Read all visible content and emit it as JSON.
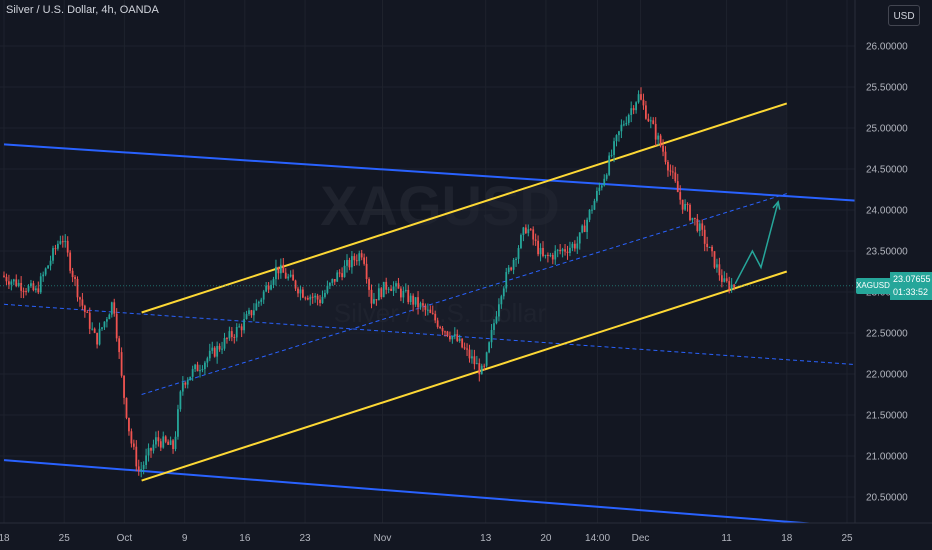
{
  "header": {
    "title": "Silver / U.S. Dollar, 4h, OANDA",
    "currency": "USD"
  },
  "watermark": {
    "symbol": "XAGUSD",
    "name": "Silver / U.S. Dollar"
  },
  "price_tag": {
    "symbol": "XAGUSD",
    "price": "23.07655",
    "countdown": "01:33:52"
  },
  "colors": {
    "background": "#131722",
    "up": "#26a69a",
    "down": "#ef5350",
    "channel_outer": "#2962ff",
    "channel_inner": "#fdd835",
    "projection": "#26a69a",
    "grid": "#1e222d"
  },
  "chart_data": {
    "type": "candlestick",
    "title": "Silver / U.S. Dollar, 4h, OANDA",
    "ylim": [
      20.3,
      26.2
    ],
    "y_ticks": [
      "26.00000",
      "25.50000",
      "25.00000",
      "24.50000",
      "24.00000",
      "23.50000",
      "23.00000",
      "22.50000",
      "22.00000",
      "21.50000",
      "21.00000",
      "20.50000"
    ],
    "x_ticks": [
      "18",
      "25",
      "Oct",
      "9",
      "16",
      "23",
      "Nov",
      "13",
      "20",
      "14:00",
      "Dec",
      "11",
      "18",
      "25"
    ],
    "grid": true,
    "last_price": 23.07655,
    "price_path": [
      [
        "Sep 18",
        23.2
      ],
      [
        "Sep 22",
        23.0
      ],
      [
        "Sep 25",
        23.7
      ],
      [
        "Sep 27",
        22.95
      ],
      [
        "Sep 29",
        22.4
      ],
      [
        "Oct 1",
        22.9
      ],
      [
        "Oct 2",
        21.9
      ],
      [
        "Oct 3",
        21.2
      ],
      [
        "Oct 4",
        20.8
      ],
      [
        "Oct 6",
        21.2
      ],
      [
        "Oct 8",
        21.1
      ],
      [
        "Oct 9",
        21.9
      ],
      [
        "Oct 12",
        22.2
      ],
      [
        "Oct 16",
        22.6
      ],
      [
        "Oct 18",
        22.9
      ],
      [
        "Oct 20",
        23.3
      ],
      [
        "Oct 23",
        23.0
      ],
      [
        "Oct 25",
        22.9
      ],
      [
        "Oct 27",
        23.2
      ],
      [
        "Oct 30",
        23.5
      ],
      [
        "Oct 31",
        22.9
      ],
      [
        "Nov 2",
        23.1
      ],
      [
        "Nov 6",
        22.8
      ],
      [
        "Nov 9",
        22.5
      ],
      [
        "Nov 10",
        22.4
      ],
      [
        "Nov 13",
        22.0
      ],
      [
        "Nov 15",
        23.0
      ],
      [
        "Nov 18",
        23.8
      ],
      [
        "Nov 20",
        23.4
      ],
      [
        "Nov 24",
        23.6
      ],
      [
        "Nov 27",
        24.4
      ],
      [
        "Nov 29",
        25.0
      ],
      [
        "Dec 1",
        25.4
      ],
      [
        "Dec 4",
        24.7
      ],
      [
        "Dec 6",
        24.1
      ],
      [
        "Dec 8",
        23.8
      ],
      [
        "Dec 11",
        23.1
      ],
      [
        "Dec 12",
        23.08
      ]
    ],
    "drawings": {
      "outer_channel_upper": [
        [
          "Sep 18",
          24.8
        ],
        [
          "Dec 28",
          24.1
        ]
      ],
      "outer_channel_lower": [
        [
          "Sep 18",
          20.95
        ],
        [
          "Dec 24",
          20.15
        ]
      ],
      "outer_channel_mid": [
        [
          "Sep 18",
          22.85
        ],
        [
          "Dec 28",
          22.1
        ]
      ],
      "inner_channel_upper": [
        [
          "Oct 4",
          22.75
        ],
        [
          "Dec 18",
          25.3
        ]
      ],
      "inner_channel_lower": [
        [
          "Oct 4",
          20.7
        ],
        [
          "Dec 18",
          23.25
        ]
      ],
      "inner_channel_mid": [
        [
          "Oct 4",
          21.75
        ],
        [
          "Dec 18",
          24.2
        ]
      ],
      "projection": [
        [
          "Dec 12",
          23.1
        ],
        [
          "Dec 14",
          23.5
        ],
        [
          "Dec 15",
          23.3
        ],
        [
          "Dec 17",
          24.1
        ]
      ]
    }
  }
}
